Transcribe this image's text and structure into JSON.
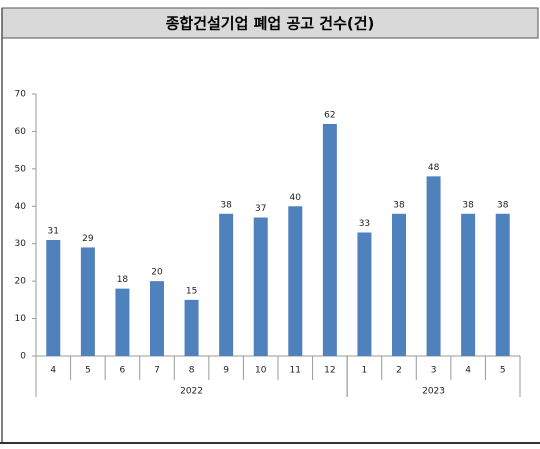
{
  "chart_data": {
    "type": "bar",
    "title": "종합건설기업 폐업 공고 건수(건)",
    "categories": [
      "4",
      "5",
      "6",
      "7",
      "8",
      "9",
      "10",
      "11",
      "12",
      "1",
      "2",
      "3",
      "4",
      "5"
    ],
    "years": [
      "2022",
      "2023"
    ],
    "values": [
      31,
      29,
      18,
      20,
      15,
      38,
      37,
      40,
      62,
      33,
      38,
      48,
      38,
      38
    ],
    "color": "#4f81bd",
    "ylim": [
      0,
      70
    ],
    "yticks": [
      0,
      10,
      20,
      30,
      40,
      50,
      60,
      70
    ],
    "grid": false
  }
}
